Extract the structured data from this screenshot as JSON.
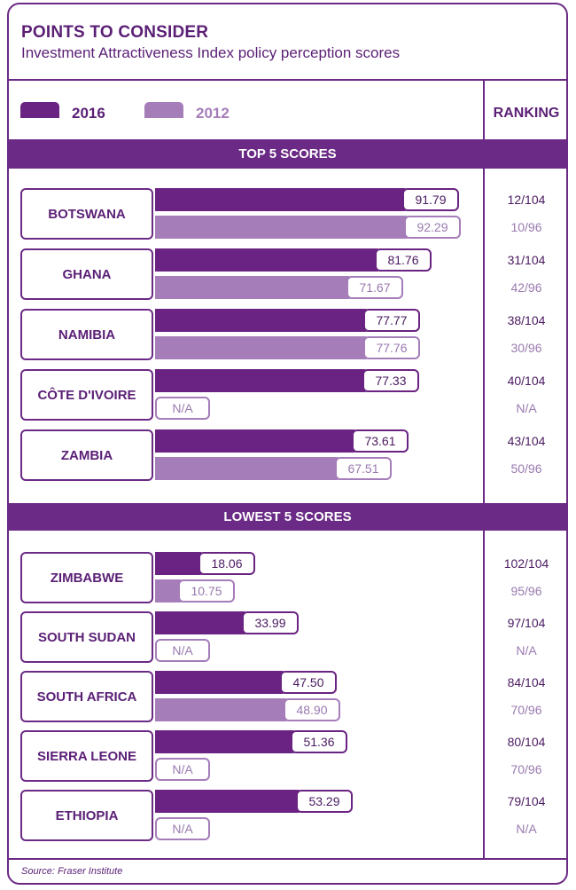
{
  "header": {
    "title": "POINTS TO CONSIDER",
    "subtitle": "Investment Attractiveness Index policy perception scores"
  },
  "legend": {
    "y2016": "2016",
    "y2012": "2012",
    "ranking": "RANKING"
  },
  "colors": {
    "y2016": "#6a2382",
    "y2012": "#a57db9",
    "frame": "#6b2a85"
  },
  "source": "Source: Fraser Institute",
  "chart_data": {
    "type": "bar",
    "orientation": "horizontal",
    "series_names": [
      "2016",
      "2012"
    ],
    "value_max": 100,
    "na_label": "N/A",
    "groups": [
      {
        "title": "TOP 5 SCORES",
        "rows": [
          {
            "country": "BOTSWANA",
            "v2016": 91.79,
            "l2016": "91.79",
            "v2012": 92.29,
            "l2012": "92.29",
            "r2016": "12/104",
            "r2012": "10/96"
          },
          {
            "country": "GHANA",
            "v2016": 81.76,
            "l2016": "81.76",
            "v2012": 71.67,
            "l2012": "71.67",
            "r2016": "31/104",
            "r2012": "42/96"
          },
          {
            "country": "NAMIBIA",
            "v2016": 77.77,
            "l2016": "77.77",
            "v2012": 77.76,
            "l2012": "77.76",
            "r2016": "38/104",
            "r2012": "30/96"
          },
          {
            "country": "CÔTE D'IVOIRE",
            "v2016": 77.33,
            "l2016": "77.33",
            "v2012": null,
            "l2012": "N/A",
            "r2016": "40/104",
            "r2012": "N/A"
          },
          {
            "country": "ZAMBIA",
            "v2016": 73.61,
            "l2016": "73.61",
            "v2012": 67.51,
            "l2012": "67.51",
            "r2016": "43/104",
            "r2012": "50/96"
          }
        ]
      },
      {
        "title": "LOWEST 5 SCORES",
        "rows": [
          {
            "country": "ZIMBABWE",
            "v2016": 18.06,
            "l2016": "18.06",
            "v2012": 10.75,
            "l2012": "10.75",
            "r2016": "102/104",
            "r2012": "95/96"
          },
          {
            "country": "SOUTH SUDAN",
            "v2016": 33.99,
            "l2016": "33.99",
            "v2012": null,
            "l2012": "N/A",
            "r2016": "97/104",
            "r2012": "N/A"
          },
          {
            "country": "SOUTH AFRICA",
            "v2016": 47.5,
            "l2016": "47.50",
            "v2012": 48.9,
            "l2012": "48.90",
            "r2016": "84/104",
            "r2012": "70/96"
          },
          {
            "country": "SIERRA LEONE",
            "v2016": 51.36,
            "l2016": "51.36",
            "v2012": null,
            "l2012": "N/A",
            "r2016": "80/104",
            "r2012": "70/96"
          },
          {
            "country": "ETHIOPIA",
            "v2016": 53.29,
            "l2016": "53.29",
            "v2012": null,
            "l2012": "N/A",
            "r2016": "79/104",
            "r2012": "N/A"
          }
        ]
      }
    ]
  }
}
